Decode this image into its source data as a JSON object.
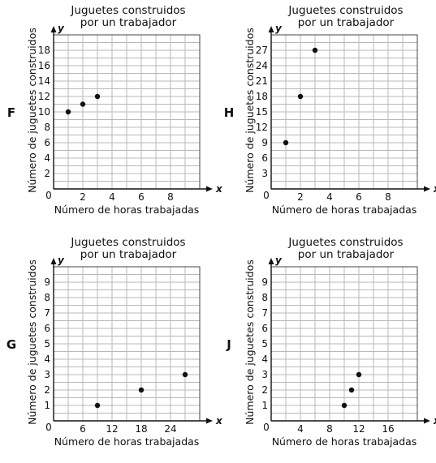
{
  "chart_data": [
    {
      "option": "F",
      "type": "scatter",
      "title": [
        "Juguetes construidos",
        "por un trabajador"
      ],
      "xlabel": "Número de horas trabajadas",
      "ylabel": "Número de juguetes construidos",
      "x_axis_letter": "x",
      "y_axis_letter": "y",
      "origin_label": "0",
      "xlim": [
        0,
        10
      ],
      "ylim": [
        0,
        20
      ],
      "x_grid_step": 1,
      "y_grid_step": 1,
      "grid": true,
      "x_ticks": [
        2,
        4,
        6,
        8
      ],
      "y_ticks": [
        2,
        4,
        6,
        8,
        10,
        12,
        14,
        16,
        18
      ],
      "points": [
        {
          "x": 1,
          "y": 10
        },
        {
          "x": 2,
          "y": 11
        },
        {
          "x": 3,
          "y": 12
        }
      ]
    },
    {
      "option": "H",
      "type": "scatter",
      "title": [
        "Juguetes construidos",
        "por un trabajador"
      ],
      "xlabel": "Número de horas trabajadas",
      "ylabel": "Número de juguetes construidos",
      "x_axis_letter": "x",
      "y_axis_letter": "y",
      "origin_label": "0",
      "xlim": [
        0,
        10
      ],
      "ylim": [
        0,
        30
      ],
      "x_grid_step": 1,
      "y_grid_step": 1.5,
      "grid": true,
      "x_ticks": [
        2,
        4,
        6,
        8
      ],
      "y_ticks": [
        3,
        6,
        9,
        12,
        15,
        18,
        21,
        24,
        27
      ],
      "points": [
        {
          "x": 1,
          "y": 9
        },
        {
          "x": 2,
          "y": 18
        },
        {
          "x": 3,
          "y": 27
        }
      ]
    },
    {
      "option": "G",
      "type": "scatter",
      "title": [
        "Juguetes construidos",
        "por un trabajador"
      ],
      "xlabel": "Número de horas trabajadas",
      "ylabel": "Número de juguetes construidos",
      "x_axis_letter": "x",
      "y_axis_letter": "y",
      "origin_label": "0",
      "xlim": [
        0,
        30
      ],
      "ylim": [
        0,
        10
      ],
      "x_grid_step": 3,
      "y_grid_step": 0.5,
      "grid": true,
      "x_ticks": [
        6,
        12,
        18,
        24
      ],
      "y_ticks": [
        1,
        2,
        3,
        4,
        5,
        6,
        7,
        8,
        9
      ],
      "points": [
        {
          "x": 9,
          "y": 1
        },
        {
          "x": 18,
          "y": 2
        },
        {
          "x": 27,
          "y": 3
        }
      ]
    },
    {
      "option": "J",
      "type": "scatter",
      "title": [
        "Juguetes construidos",
        "por un trabajador"
      ],
      "xlabel": "Número de horas trabajadas",
      "ylabel": "Número de juguetes construidos",
      "x_axis_letter": "x",
      "y_axis_letter": "y",
      "origin_label": "0",
      "xlim": [
        0,
        20
      ],
      "ylim": [
        0,
        10
      ],
      "x_grid_step": 2,
      "y_grid_step": 0.5,
      "grid": true,
      "x_ticks": [
        4,
        8,
        12,
        16
      ],
      "y_ticks": [
        1,
        2,
        3,
        4,
        5,
        6,
        7,
        8,
        9
      ],
      "points": [
        {
          "x": 10,
          "y": 1
        },
        {
          "x": 11,
          "y": 2
        },
        {
          "x": 12,
          "y": 3
        }
      ]
    }
  ]
}
